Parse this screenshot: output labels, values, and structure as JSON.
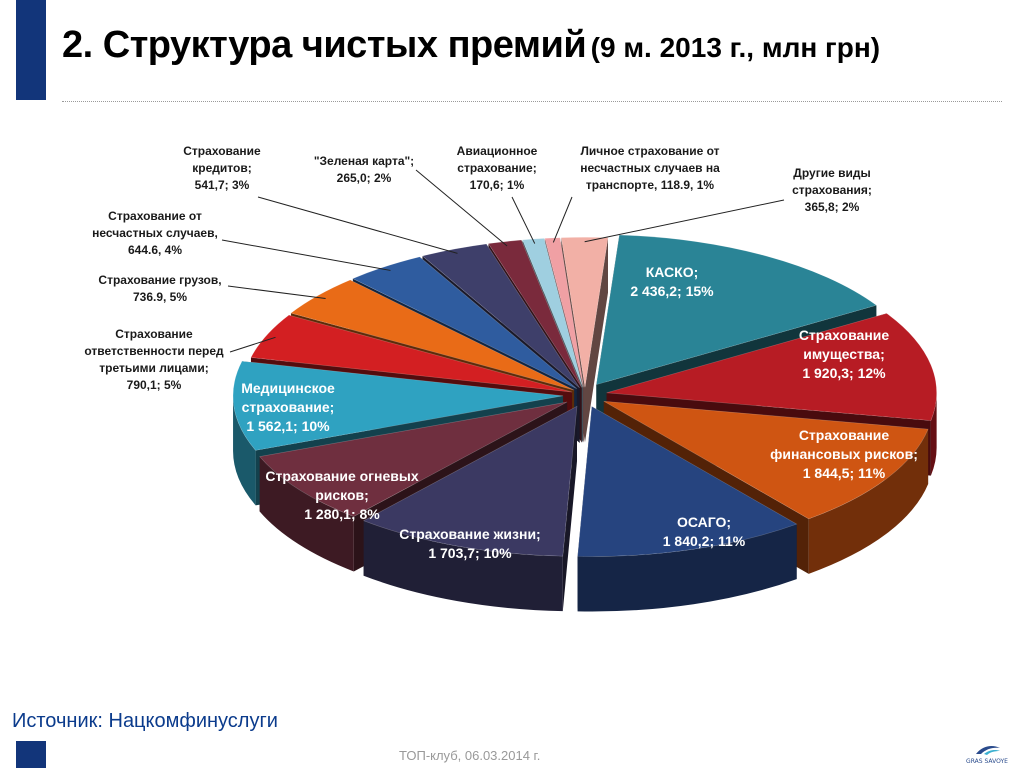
{
  "title": {
    "main": "2. Структура чистых премий",
    "sub": "(9 м. 2013 г., млн грн)"
  },
  "source": "Источник: Нацкомфинуслуги",
  "footer": "ТОП-клуб, 06.03.2014 г.",
  "logo": {
    "text": "GRAS SAVOYE"
  },
  "chart_data": {
    "type": "pie",
    "title": "2. Структура чистых премий (9 м. 2013 г., млн грн)",
    "unit": "млн грн",
    "slices": [
      {
        "name": "КАСКО",
        "value": 2436.2,
        "percent": 15,
        "color": "#2a8496",
        "lines": [
          "КАСКО;",
          "2 436,2; 15%"
        ]
      },
      {
        "name": "Страхование имущества",
        "value": 1920.3,
        "percent": 12,
        "color": "#b71c24",
        "lines": [
          "Страхование",
          "имущества;",
          "1 920,3; 12%"
        ]
      },
      {
        "name": "Страхование финансовых рисков",
        "value": 1844.5,
        "percent": 11,
        "color": "#cf5512",
        "lines": [
          "Страхование",
          "финансовых рисков;",
          "1 844,5; 11%"
        ]
      },
      {
        "name": "ОСАГО",
        "value": 1840.2,
        "percent": 11,
        "color": "#26447f",
        "lines": [
          "ОСАГО;",
          "1 840,2; 11%"
        ]
      },
      {
        "name": "Страхование жизни",
        "value": 1703.7,
        "percent": 10,
        "color": "#3b3962",
        "lines": [
          "Страхование жизни;",
          "1 703,7; 10%"
        ]
      },
      {
        "name": "Страхование огневых рисков",
        "value": 1280.1,
        "percent": 8,
        "color": "#6f2f3f",
        "lines": [
          "Страхование огневых",
          "рисков;",
          "1 280,1; 8%"
        ]
      },
      {
        "name": "Медицинское страхование",
        "value": 1562.1,
        "percent": 10,
        "color": "#2fa2c1",
        "lines": [
          "Медицинское",
          "страхование;",
          "1 562,1; 10%"
        ]
      },
      {
        "name": "Страхование ответственности перед третьими лицами",
        "value": 790.1,
        "percent": 5,
        "color": "#d31f22",
        "lines": [
          "Страхование",
          "ответственности перед",
          "третьими лицами;",
          "790,1; 5%"
        ]
      },
      {
        "name": "Страхование грузов",
        "value": 736.9,
        "percent": 5,
        "color": "#e96b17",
        "lines": [
          "Страхование грузов,",
          "736.9, 5%"
        ]
      },
      {
        "name": "Страхование от несчастных случаев",
        "value": 644.6,
        "percent": 4,
        "color": "#2f5c9f",
        "lines": [
          "Страхование от",
          "несчастных случаев,",
          "644.6, 4%"
        ]
      },
      {
        "name": "Страхование кредитов",
        "value": 541.7,
        "percent": 3,
        "color": "#3e3f6a",
        "lines": [
          "Страхование",
          "кредитов;",
          "541,7; 3%"
        ]
      },
      {
        "name": "\"Зеленая карта\"",
        "value": 265.0,
        "percent": 2,
        "color": "#7a2a3c",
        "lines": [
          "\"Зеленая карта\";",
          "265,0; 2%"
        ]
      },
      {
        "name": "Авиационное страхование",
        "value": 170.6,
        "percent": 1,
        "color": "#9fcfe0",
        "lines": [
          "Авиационное",
          "страхование;",
          "170,6; 1%"
        ]
      },
      {
        "name": "Личное страхование от несчастных случаев на транспорте",
        "value": 118.9,
        "percent": 1,
        "color": "#f0a0a4",
        "lines": [
          "Личное страхование от",
          "несчастных случаев на",
          "транспорте, 118.9, 1%"
        ]
      },
      {
        "name": "Другие виды страхования",
        "value": 365.8,
        "percent": 2,
        "color": "#f2b0a6",
        "lines": [
          "Другие виды",
          "страхования;",
          "365,8; 2%"
        ]
      }
    ]
  }
}
